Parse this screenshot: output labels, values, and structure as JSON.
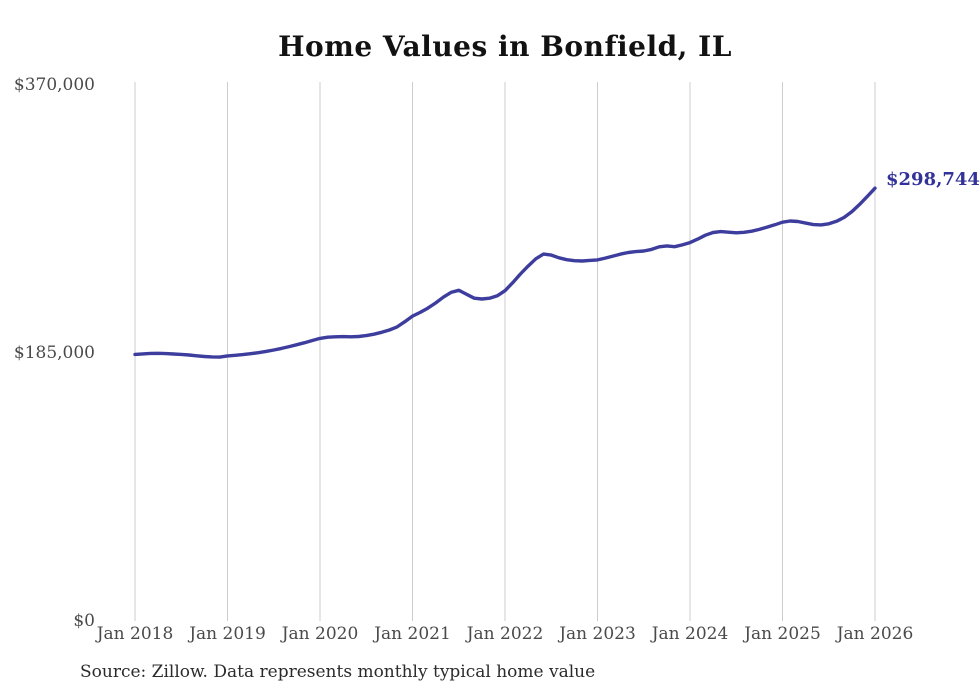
{
  "title": "Home Values in Bonfield, IL",
  "source_note": "Source: Zillow. Data represents monthly typical home value",
  "end_label": "$298,744",
  "colors": {
    "line": "#3d3d9e",
    "grid": "#cccccc",
    "title_text": "#121212",
    "axis_text": "#4a4a4a",
    "end_label_text": "#323299",
    "background": "#ffffff"
  },
  "chart_data": {
    "type": "line",
    "title": "Home Values in Bonfield, IL",
    "xlabel": "",
    "ylabel": "",
    "ylim": [
      0,
      370000
    ],
    "grid": "vertical-only",
    "legend": "none",
    "x_unit": "month",
    "x_range": [
      "2018-01",
      "2026-01"
    ],
    "x_tick_labels": [
      "Jan 2018",
      "Jan 2019",
      "Jan 2020",
      "Jan 2021",
      "Jan 2022",
      "Jan 2023",
      "Jan 2024",
      "Jan 2025",
      "Jan 2026"
    ],
    "y_ticks": [
      {
        "label": "$0",
        "value": 0
      },
      {
        "label": "$185,000",
        "value": 185000
      },
      {
        "label": "$370,000",
        "value": 370000
      }
    ],
    "final_value": 298744,
    "series": [
      {
        "name": "Typical home value",
        "frequency": "monthly",
        "values": [
          184000,
          184400,
          184700,
          184800,
          184600,
          184300,
          184000,
          183600,
          183100,
          182600,
          182300,
          182200,
          183000,
          183400,
          183900,
          184500,
          185200,
          186100,
          187100,
          188200,
          189400,
          190700,
          192100,
          193600,
          195100,
          195900,
          196200,
          196300,
          196200,
          196400,
          197000,
          198000,
          199300,
          200900,
          203000,
          206600,
          210500,
          213000,
          216000,
          219500,
          223500,
          226800,
          228300,
          225500,
          222800,
          222300,
          222800,
          224500,
          228000,
          233500,
          239500,
          245000,
          250000,
          253300,
          252600,
          250700,
          249400,
          248700,
          248500,
          248900,
          249300,
          250500,
          251900,
          253300,
          254400,
          255000,
          255400,
          256500,
          258300,
          258900,
          258400,
          259600,
          261200,
          263600,
          266300,
          268200,
          268800,
          268400,
          268000,
          268300,
          269100,
          270300,
          271900,
          273500,
          275300,
          276100,
          275800,
          274700,
          273600,
          273400,
          274200,
          275900,
          278600,
          282600,
          287600,
          293100,
          298744
        ]
      }
    ]
  }
}
